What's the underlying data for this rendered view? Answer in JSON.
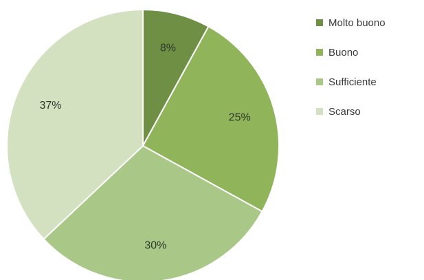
{
  "chart_data": {
    "type": "pie",
    "categories": [
      "Molto buono",
      "Buono",
      "Sufficiente",
      "Scarso"
    ],
    "values": [
      8,
      25,
      30,
      37
    ],
    "value_labels": [
      "8%",
      "25%",
      "30%",
      "37%"
    ],
    "colors": [
      "#6f8f45",
      "#8fb45a",
      "#a9c786",
      "#d3e1c0"
    ],
    "legend_position": "right",
    "start_angle_deg": 0,
    "direction": "clockwise"
  }
}
